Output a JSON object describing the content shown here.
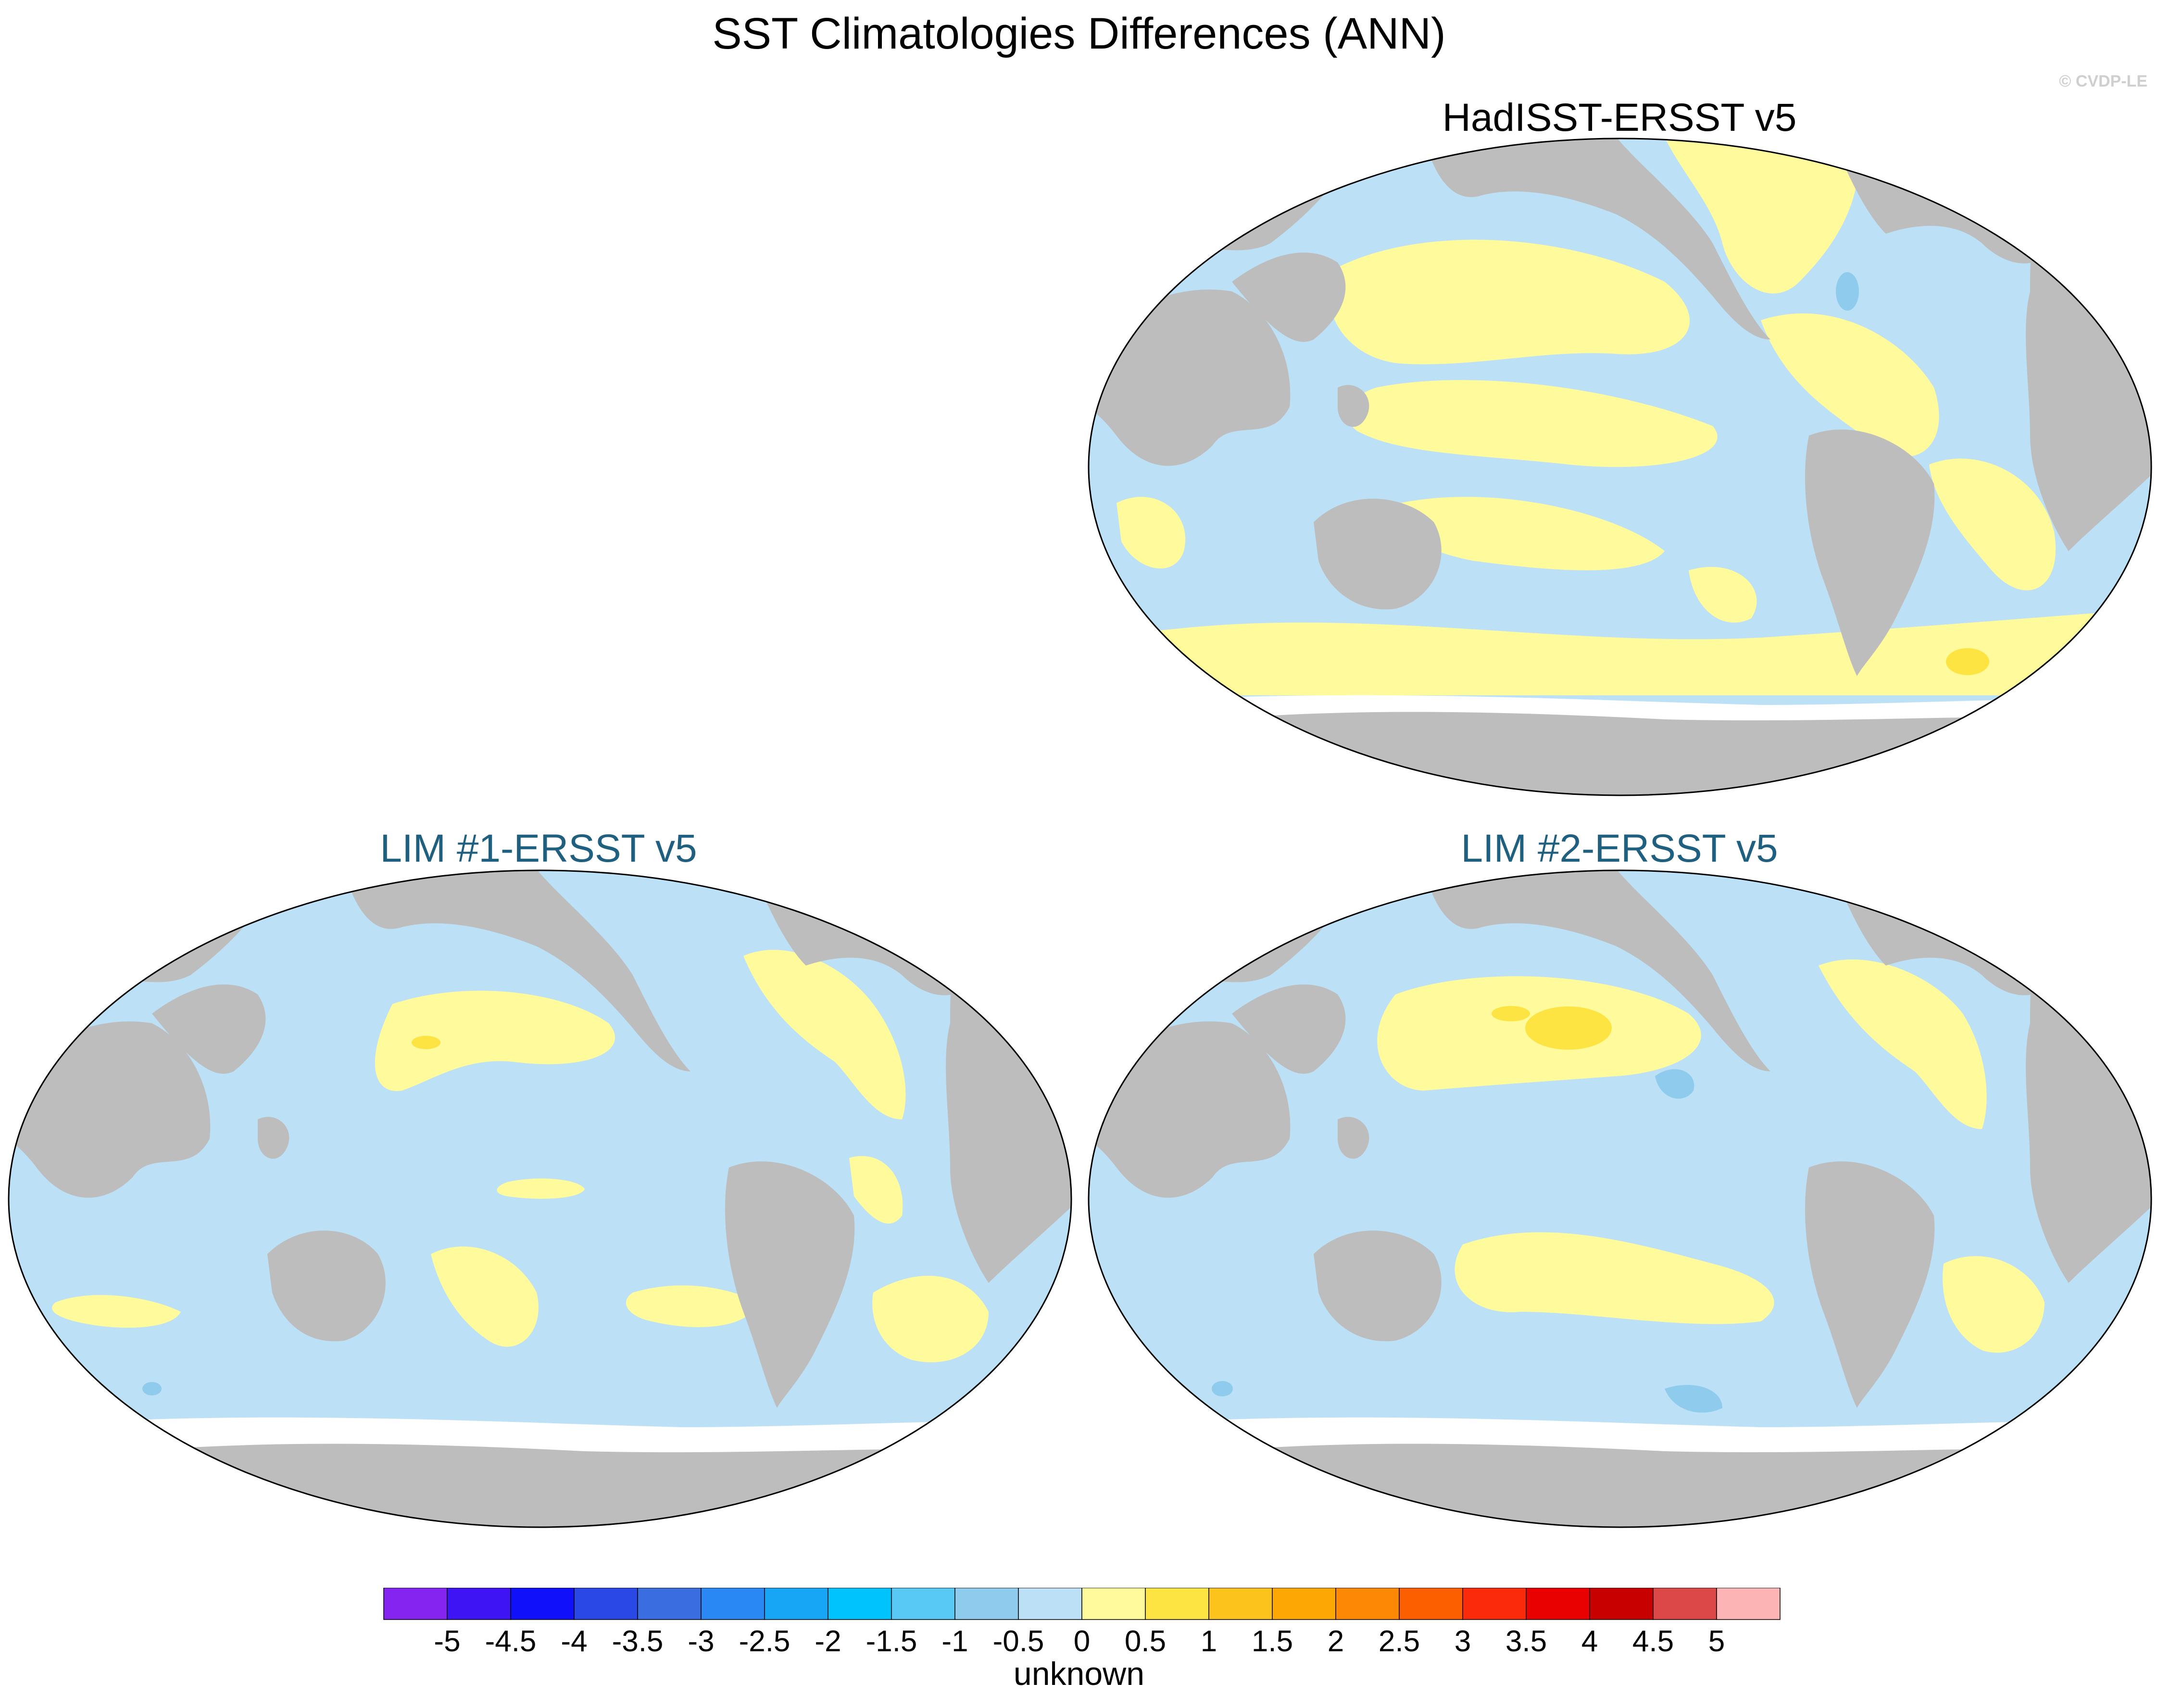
{
  "title": "SST Climatologies Differences (ANN)",
  "watermark": "© CVDP-LE",
  "colorbar_label": "unknown",
  "colors": {
    "land": "#bdbdbd",
    "ocean_neg": "#bce0f5",
    "ocean_pos": "#fffa9c",
    "pos_strong": "#fde442",
    "neg_strong": "#8fcbed",
    "panel_title_blue": "#1f5f7f"
  },
  "chart_data": {
    "type": "heatmap",
    "title": "SST Climatologies Differences (ANN)",
    "colorbar": {
      "label": "unknown",
      "ticks": [
        "-5",
        "-4.5",
        "-4",
        "-3.5",
        "-3",
        "-2.5",
        "-2",
        "-1.5",
        "-1",
        "-0.5",
        "0",
        "0.5",
        "1",
        "1.5",
        "2",
        "2.5",
        "3",
        "3.5",
        "4",
        "4.5",
        "5"
      ],
      "colors": [
        "#8424ee",
        "#3e14f5",
        "#1010fa",
        "#2a48e6",
        "#3a6ee0",
        "#2a88f4",
        "#17a5f6",
        "#00c2fc",
        "#58c8f5",
        "#8fcbed",
        "#bce0f5",
        "#fffa9c",
        "#fde442",
        "#fcc31d",
        "#fca704",
        "#fc8804",
        "#fc5f00",
        "#fa2a0b",
        "#e90000",
        "#c80000",
        "#dc4848",
        "#fdb4b4"
      ]
    },
    "panels": [
      {
        "name": "HadISST-ERSST v5",
        "position": "top-right"
      },
      {
        "name": "LIM #1-ERSST v5",
        "position": "bottom-left"
      },
      {
        "name": "LIM #2-ERSST v5",
        "position": "bottom-right"
      }
    ]
  }
}
